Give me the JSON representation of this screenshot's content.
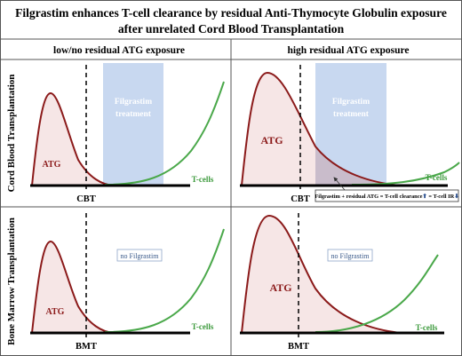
{
  "title": {
    "line1": "Filgrastim enhances T-cell clearance by residual Anti-Thymocyte Globulin exposure",
    "line2": "after unrelated Cord Blood Transplantation"
  },
  "columns": [
    {
      "label": "low/no residual ATG exposure"
    },
    {
      "label": "high residual ATG exposure"
    }
  ],
  "rows": [
    {
      "label": "Cord Blood Transplantation"
    },
    {
      "label": "Bone Marrow Transplantation"
    }
  ],
  "panels": {
    "cb_low": {
      "atg_label": "ATG",
      "tcell_label": "T-cells",
      "time_label": "CBT",
      "treatment_label": [
        "Filgrastim",
        "treatment"
      ]
    },
    "cb_high": {
      "atg_label": "ATG",
      "tcell_label": "T-cells",
      "time_label": "CBT",
      "treatment_label": [
        "Filgrastim",
        "treatment"
      ],
      "note": {
        "prefix": "Filgrastim + residual ATG = T-cell clearance",
        "suffix": " = T-cell IR",
        "up": "⬆",
        "down": "⬇"
      }
    },
    "bm_low": {
      "atg_label": "ATG",
      "tcell_label": "T-cells",
      "time_label": "BMT",
      "no_treatment_label": "no Filgrastim"
    },
    "bm_high": {
      "atg_label": "ATG",
      "tcell_label": "T-cells",
      "time_label": "BMT",
      "no_treatment_label": "no Filgrastim"
    }
  },
  "colors": {
    "atg_line": "#8b1a1a",
    "atg_fill": "#f6e6e6",
    "tcell_line": "#4aa84a",
    "treatment_box": "#c8d8f0",
    "overlap_fill": "#c9bccb",
    "border": "#555555"
  }
}
